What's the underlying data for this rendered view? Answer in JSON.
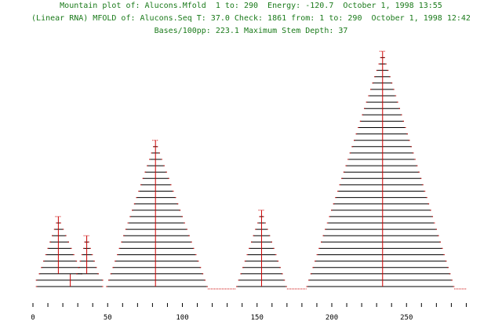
{
  "header": {
    "line1": "Mountain plot of: Alucons.Mfold  1 to: 290  Energy: -120.7  October 1, 1998 13:55",
    "line2": "(Linear RNA) MFOLD of: Alucons.Seq T: 37.0 Check: 1861 from: 1 to: 290  October 1, 1998 12:42",
    "line3": "Bases/100pp: 223.1 Maximum Stem Depth: 37"
  },
  "colors": {
    "header_text": "#1a7a1a",
    "stem_lines": "#000000",
    "center_lines": "#cc0000",
    "loop_dots": "#cc0000",
    "axis": "#000000"
  },
  "chart_data": {
    "type": "mountain",
    "title": "Mountain plot of: Alucons.Mfold  1 to: 290  Energy: -120.7  October 1, 1998 13:55",
    "xlabel": "",
    "ylabel": "",
    "xlim": [
      1,
      290
    ],
    "xticks": [
      0,
      50,
      100,
      150,
      200,
      250
    ],
    "max_stem_depth": 37,
    "peaks": [
      {
        "base_left": 2,
        "base_right": 47,
        "base_level": 0,
        "split_level": 2,
        "center": 25,
        "sub_peaks": [
          {
            "center": 17,
            "left": 4,
            "right": 33,
            "height": 11
          },
          {
            "center": 36,
            "left": 29,
            "right": 44,
            "height": 8
          }
        ]
      },
      {
        "left": 49,
        "right": 117,
        "center": 82,
        "height": 23
      },
      {
        "left": 136,
        "right": 170,
        "center": 153,
        "height": 12
      },
      {
        "left": 183,
        "right": 282,
        "center": 234,
        "height": 37
      }
    ],
    "loop_segments": [
      [
        117,
        136
      ],
      [
        170,
        183
      ],
      [
        282,
        290
      ]
    ]
  }
}
